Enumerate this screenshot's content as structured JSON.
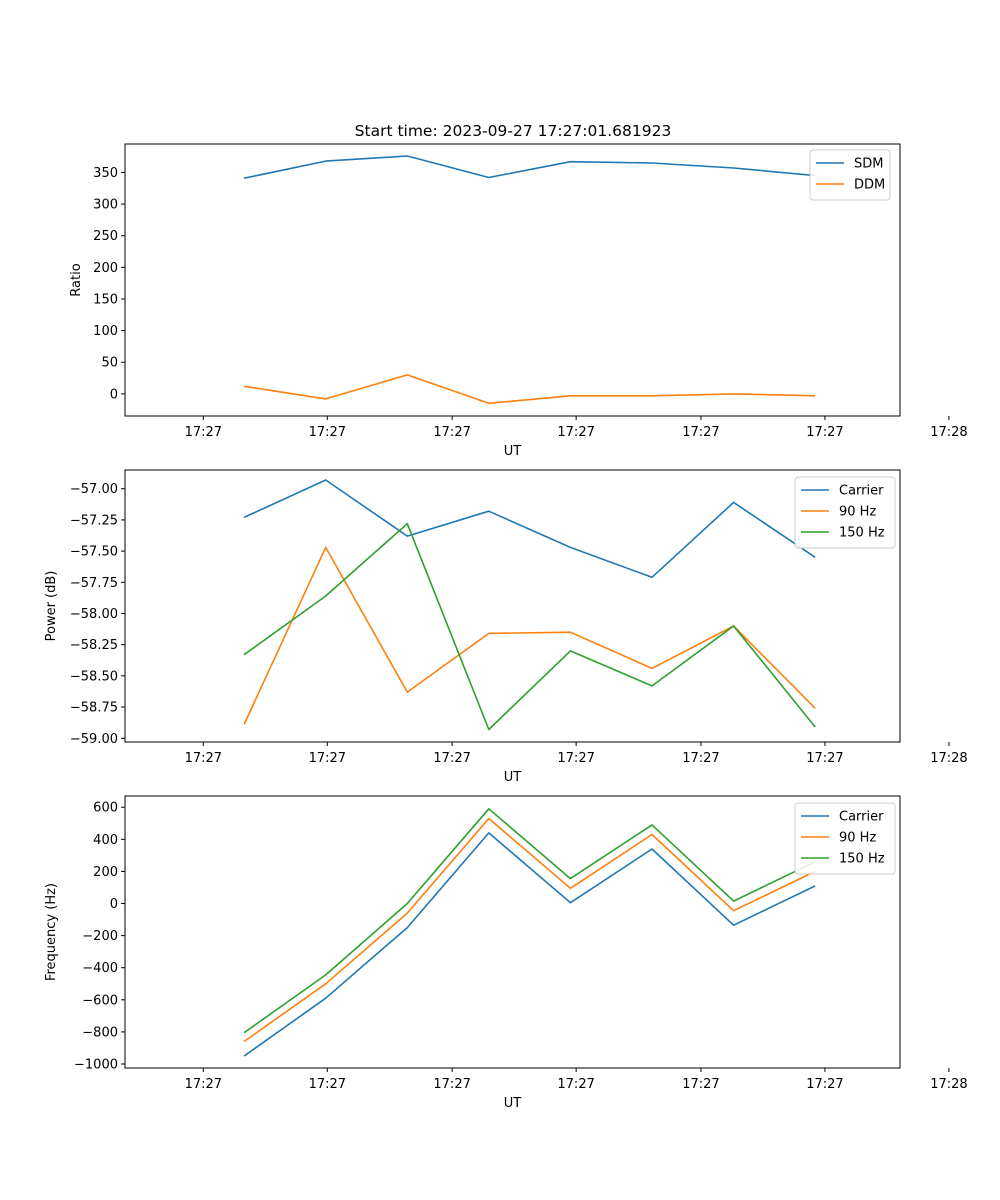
{
  "title": "Start time: 2023-09-27 17:27:01.681923",
  "colors": {
    "blue": "#1f77b4",
    "orange": "#ff7f0e",
    "green": "#2ca02c"
  },
  "chart_data": [
    {
      "type": "line",
      "title": "Start time: 2023-09-27 17:27:01.681923",
      "xlabel": "UT",
      "ylabel": "Ratio",
      "x": [
        0.5,
        1.5,
        2.5,
        3.5,
        4.5,
        5.5,
        6.5,
        7.5
      ],
      "xlim": [
        -0.96,
        8.54
      ],
      "xticks": [
        0,
        1.52,
        3.05,
        4.57,
        6.1,
        7.62,
        9.14
      ],
      "xtick_labels": [
        "17:27",
        "17:27",
        "17:27",
        "17:27",
        "17:27",
        "17:27",
        "17:28"
      ],
      "ylim": [
        -35,
        395
      ],
      "yticks": [
        0,
        50,
        100,
        150,
        200,
        250,
        300,
        350
      ],
      "ytick_labels": [
        "0",
        "50",
        "100",
        "150",
        "200",
        "250",
        "300",
        "350"
      ],
      "legend": "top-right",
      "series": [
        {
          "name": "SDM",
          "color": "#1f77b4",
          "values": [
            341,
            368,
            376,
            342,
            367,
            365,
            357,
            345
          ]
        },
        {
          "name": "DDM",
          "color": "#ff7f0e",
          "values": [
            12,
            -8,
            30,
            -15,
            -3,
            -3,
            0,
            -3
          ]
        }
      ]
    },
    {
      "type": "line",
      "title": "",
      "xlabel": "UT",
      "ylabel": "Power (dB)",
      "x": [
        0.5,
        1.5,
        2.5,
        3.5,
        4.5,
        5.5,
        6.5,
        7.5
      ],
      "xlim": [
        -0.96,
        8.54
      ],
      "xticks": [
        0,
        1.52,
        3.05,
        4.57,
        6.1,
        7.62,
        9.14
      ],
      "xtick_labels": [
        "17:27",
        "17:27",
        "17:27",
        "17:27",
        "17:27",
        "17:27",
        "17:28"
      ],
      "ylim": [
        -59.03,
        -56.85
      ],
      "yticks": [
        -59.0,
        -58.75,
        -58.5,
        -58.25,
        -58.0,
        -57.75,
        -57.5,
        -57.25,
        -57.0
      ],
      "ytick_labels": [
        "−59.00",
        "−58.75",
        "−58.50",
        "−58.25",
        "−58.00",
        "−57.75",
        "−57.50",
        "−57.25",
        "−57.00"
      ],
      "legend": "top-right",
      "series": [
        {
          "name": "Carrier",
          "color": "#1f77b4",
          "values": [
            -57.23,
            -56.93,
            -57.38,
            -57.18,
            -57.47,
            -57.71,
            -57.11,
            -57.55
          ]
        },
        {
          "name": "90 Hz",
          "color": "#ff7f0e",
          "values": [
            -58.89,
            -57.47,
            -58.63,
            -58.16,
            -58.15,
            -58.44,
            -58.1,
            -58.76
          ]
        },
        {
          "name": "150 Hz",
          "color": "#2ca02c",
          "values": [
            -58.33,
            -57.86,
            -57.28,
            -58.93,
            -58.3,
            -58.58,
            -58.1,
            -58.91
          ]
        }
      ]
    },
    {
      "type": "line",
      "title": "",
      "xlabel": "UT",
      "ylabel": "Frequency (Hz)",
      "x": [
        0.5,
        1.5,
        2.5,
        3.5,
        4.5,
        5.5,
        6.5,
        7.5
      ],
      "xlim": [
        -0.96,
        8.54
      ],
      "xticks": [
        0,
        1.52,
        3.05,
        4.57,
        6.1,
        7.62,
        9.14
      ],
      "xtick_labels": [
        "17:27",
        "17:27",
        "17:27",
        "17:27",
        "17:27",
        "17:27",
        "17:28"
      ],
      "ylim": [
        -1025,
        670
      ],
      "yticks": [
        -1000,
        -800,
        -600,
        -400,
        -200,
        0,
        200,
        400,
        600
      ],
      "ytick_labels": [
        "−1000",
        "−800",
        "−600",
        "−400",
        "−200",
        "0",
        "200",
        "400",
        "600"
      ],
      "legend": "top-right",
      "series": [
        {
          "name": "Carrier",
          "color": "#1f77b4",
          "values": [
            -950,
            -590,
            -150,
            440,
            5,
            340,
            -135,
            110
          ]
        },
        {
          "name": "90 Hz",
          "color": "#ff7f0e",
          "values": [
            -860,
            -500,
            -60,
            530,
            95,
            430,
            -45,
            200
          ]
        },
        {
          "name": "150 Hz",
          "color": "#2ca02c",
          "values": [
            -805,
            -445,
            0,
            590,
            155,
            490,
            15,
            260
          ]
        }
      ]
    }
  ]
}
